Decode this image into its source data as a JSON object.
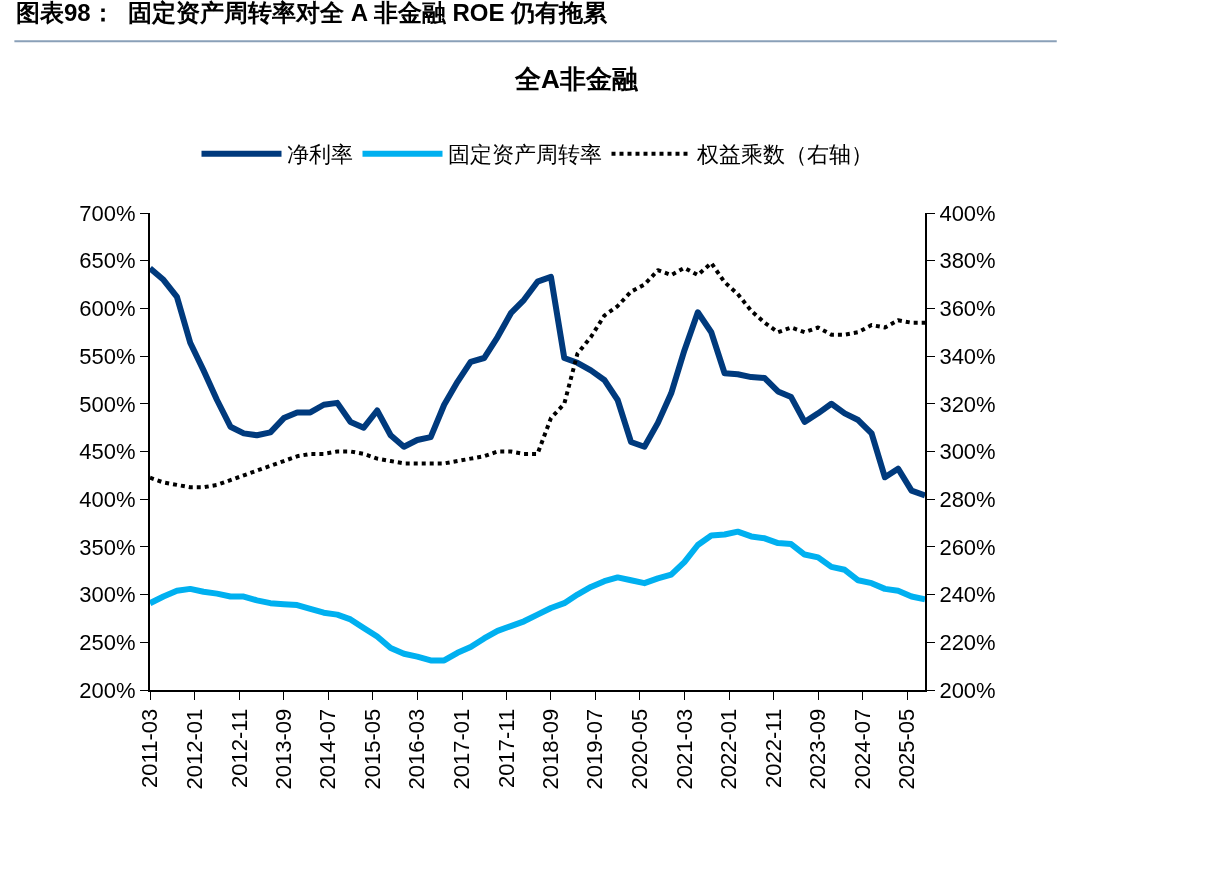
{
  "chart_data": {
    "type": "line",
    "title": "图表98：  固定资产周转率对全 A 非金融 ROE 仍有拖累",
    "subtitle": "全A非金融",
    "x": [
      "2011-03",
      "2011-06",
      "2011-09",
      "2011-12",
      "2012-03",
      "2012-06",
      "2012-09",
      "2012-12",
      "2013-03",
      "2013-06",
      "2013-09",
      "2013-12",
      "2014-03",
      "2014-06",
      "2014-09",
      "2014-12",
      "2015-03",
      "2015-06",
      "2015-09",
      "2015-12",
      "2016-03",
      "2016-06",
      "2016-09",
      "2016-12",
      "2017-03",
      "2017-06",
      "2017-09",
      "2017-12",
      "2018-03",
      "2018-06",
      "2018-09",
      "2018-12",
      "2019-03",
      "2019-06",
      "2019-09",
      "2019-12",
      "2020-03",
      "2020-06",
      "2020-09",
      "2020-12",
      "2021-03",
      "2021-06",
      "2021-09",
      "2021-12",
      "2022-03",
      "2022-06",
      "2022-09",
      "2022-12",
      "2023-03",
      "2023-06",
      "2023-09",
      "2023-12",
      "2024-03",
      "2024-06",
      "2024-09",
      "2024-12",
      "2025-03",
      "2025-06",
      "2025-09"
    ],
    "series": [
      {
        "name": "净利率",
        "color": "#003a7d",
        "line_style": "solid",
        "values": [
          642,
          630,
          612,
          564,
          535,
          504,
          476,
          469,
          467,
          470,
          485,
          491,
          491,
          499,
          501,
          481,
          475,
          493,
          467,
          455,
          462,
          465,
          499,
          523,
          544,
          548,
          570,
          595,
          609,
          628,
          633,
          548,
          543,
          535,
          525,
          504,
          460,
          455,
          480,
          511,
          556,
          596,
          575,
          532,
          531,
          528,
          527,
          513,
          507,
          481,
          490,
          500,
          490,
          483,
          469,
          423,
          432,
          409,
          404
        ]
      },
      {
        "name": "固定资产周转率",
        "color": "#00b0f0",
        "line_style": "solid",
        "values": [
          291,
          298,
          304,
          306,
          303,
          301,
          298,
          298,
          294,
          291,
          290,
          289,
          285,
          281,
          279,
          274,
          265,
          256,
          244,
          238,
          235,
          231,
          231,
          239,
          245,
          254,
          262,
          267,
          272,
          279,
          286,
          291,
          300,
          308,
          314,
          318,
          315,
          312,
          317,
          321,
          334,
          352,
          362,
          363,
          366,
          361,
          359,
          354,
          353,
          342,
          339,
          329,
          326,
          315,
          312,
          306,
          304,
          298,
          295
        ]
      },
      {
        "name": "权益乘数（右轴）",
        "color": "#000000",
        "line_style": "dotted",
        "axis": "y2",
        "values": [
          289,
          287,
          286,
          285,
          285,
          286,
          288,
          290,
          292,
          294,
          296,
          298,
          299,
          299,
          300,
          300,
          299,
          297,
          296,
          295,
          295,
          295,
          295,
          296,
          297,
          298,
          300,
          300,
          299,
          299,
          314,
          320,
          341,
          348,
          357,
          361,
          367,
          370,
          376,
          374,
          377,
          374,
          379,
          371,
          366,
          359,
          354,
          350,
          352,
          350,
          352,
          349,
          349,
          350,
          353,
          352,
          355,
          354,
          354
        ]
      }
    ],
    "xlim": [
      "2011-03",
      "2025-09"
    ],
    "xticks": [
      "2011-03",
      "2012-01",
      "2012-11",
      "2013-09",
      "2014-07",
      "2015-05",
      "2016-03",
      "2017-01",
      "2017-11",
      "2018-09",
      "2019-07",
      "2020-05",
      "2021-03",
      "2022-01",
      "2022-11",
      "2023-09",
      "2024-07",
      "2025-05"
    ],
    "ylim": [
      200,
      700
    ],
    "yticks": [
      {
        "value": 200,
        "label": "200%"
      },
      {
        "value": 250,
        "label": "250%"
      },
      {
        "value": 300,
        "label": "300%"
      },
      {
        "value": 350,
        "label": "350%"
      },
      {
        "value": 400,
        "label": "400%"
      },
      {
        "value": 450,
        "label": "450%"
      },
      {
        "value": 500,
        "label": "500%"
      },
      {
        "value": 550,
        "label": "550%"
      },
      {
        "value": 600,
        "label": "600%"
      },
      {
        "value": 650,
        "label": "650%"
      },
      {
        "value": 700,
        "label": "700%"
      }
    ],
    "y2lim": [
      200,
      400
    ],
    "y2ticks": [
      {
        "value": 200,
        "label": "200%"
      },
      {
        "value": 220,
        "label": "220%"
      },
      {
        "value": 240,
        "label": "240%"
      },
      {
        "value": 260,
        "label": "260%"
      },
      {
        "value": 280,
        "label": "280%"
      },
      {
        "value": 300,
        "label": "300%"
      },
      {
        "value": 320,
        "label": "320%"
      },
      {
        "value": 340,
        "label": "340%"
      },
      {
        "value": 360,
        "label": "360%"
      },
      {
        "value": 380,
        "label": "380%"
      },
      {
        "value": 400,
        "label": "400%"
      }
    ],
    "legend": "top",
    "marker": "none"
  }
}
